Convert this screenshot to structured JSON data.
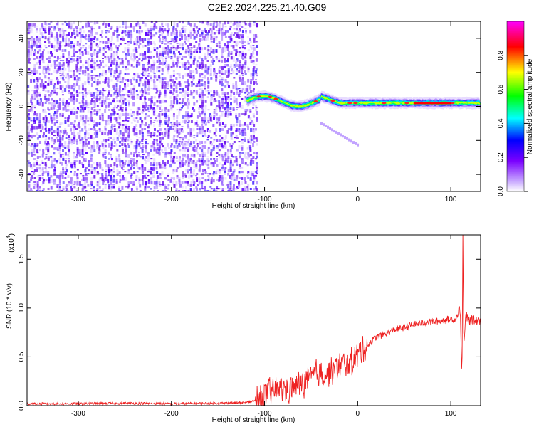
{
  "title": "C2E2.2024.225.21.40.G09",
  "chart_data": [
    {
      "type": "heatmap",
      "title": "",
      "xlabel": "Height of straight line (km)",
      "ylabel": "Frequency (Hz)",
      "xlim": [
        -355,
        132
      ],
      "ylim": [
        -50,
        50
      ],
      "xticks": [
        -300,
        -200,
        -100,
        0,
        100
      ],
      "yticks": [
        -40,
        -20,
        0,
        20,
        40
      ],
      "grid": false,
      "description_regions": [
        {
          "x_range": [
            -355,
            -110
          ],
          "y_range": [
            -50,
            50
          ],
          "pattern": "broadband noise speckle",
          "amplitude": 0.15
        },
        {
          "x_range": [
            -120,
            132
          ],
          "center_hz": 0,
          "pattern": "narrow carrier line",
          "amplitude": 0.5
        },
        {
          "x_range": [
            -40,
            0
          ],
          "y_range": [
            -23,
            -10
          ],
          "pattern": "faint secondary trace",
          "amplitude": 0.12
        }
      ],
      "colorbar": {
        "label": "Normalized spectral amplitude",
        "range": [
          0.0,
          1.0
        ],
        "ticks": [
          "0.0",
          "0.2",
          "0.4",
          "0.6",
          "0.8"
        ],
        "colors": [
          "#ffffff",
          "#7a00ff",
          "#0000ff",
          "#00ffff",
          "#00ff00",
          "#ffff00",
          "#ff0000",
          "#ff00ff"
        ]
      }
    },
    {
      "type": "line",
      "title": "",
      "xlabel": "Height of straight line (km)",
      "ylabel": "SNR (10 * v/v)",
      "yscale_note": "(x10",
      "yscale_exp": "4",
      "y_unit_note": ")",
      "xlim": [
        -355,
        132
      ],
      "ylim": [
        0,
        1.75
      ],
      "xticks": [
        -300,
        -200,
        -100,
        0,
        100
      ],
      "yticks": [
        0.0,
        0.5,
        1.0,
        1.5
      ],
      "ytick_labels": [
        "0.0",
        "0.5",
        "1.0",
        "1.5"
      ],
      "series": [
        {
          "color": "#ee2222",
          "x": [
            -355,
            -300,
            -250,
            -200,
            -150,
            -120,
            -105,
            -95,
            -85,
            -75,
            -65,
            -55,
            -45,
            -35,
            -25,
            -15,
            -5,
            0,
            10,
            20,
            30,
            40,
            50,
            60,
            70,
            80,
            90,
            100,
            105,
            110,
            112,
            113,
            114,
            116,
            120,
            132
          ],
          "y": [
            0.02,
            0.02,
            0.025,
            0.02,
            0.025,
            0.03,
            0.06,
            0.14,
            0.18,
            0.16,
            0.2,
            0.25,
            0.33,
            0.32,
            0.38,
            0.42,
            0.45,
            0.53,
            0.62,
            0.7,
            0.74,
            0.78,
            0.8,
            0.83,
            0.85,
            0.86,
            0.87,
            0.89,
            0.88,
            1.0,
            0.3,
            1.75,
            0.6,
            0.92,
            0.87,
            0.88
          ]
        }
      ]
    }
  ]
}
